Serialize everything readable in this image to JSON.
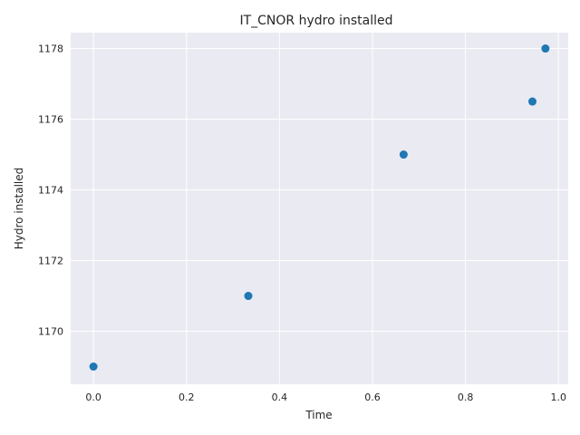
{
  "chart_data": {
    "type": "scatter",
    "title": "IT_CNOR hydro installed",
    "xlabel": "Time",
    "ylabel": "Hydro installed",
    "x": [
      0.0,
      0.333,
      0.667,
      0.944,
      0.972
    ],
    "y": [
      1169,
      1171,
      1175,
      1176.5,
      1178
    ],
    "xlim": [
      -0.049,
      1.021
    ],
    "ylim": [
      1168.5,
      1178.45
    ],
    "xticks": [
      0.0,
      0.2,
      0.4,
      0.6,
      0.8,
      1.0
    ],
    "xtick_labels": [
      "0.0",
      "0.2",
      "0.4",
      "0.6",
      "0.8",
      "1.0"
    ],
    "yticks": [
      1170,
      1172,
      1174,
      1176,
      1178
    ],
    "ytick_labels": [
      "1170",
      "1172",
      "1174",
      "1176",
      "1178"
    ],
    "grid": true,
    "colors": {
      "background": "#eaeaf2",
      "grid": "#ffffff",
      "marker": "#1f77b4"
    }
  }
}
